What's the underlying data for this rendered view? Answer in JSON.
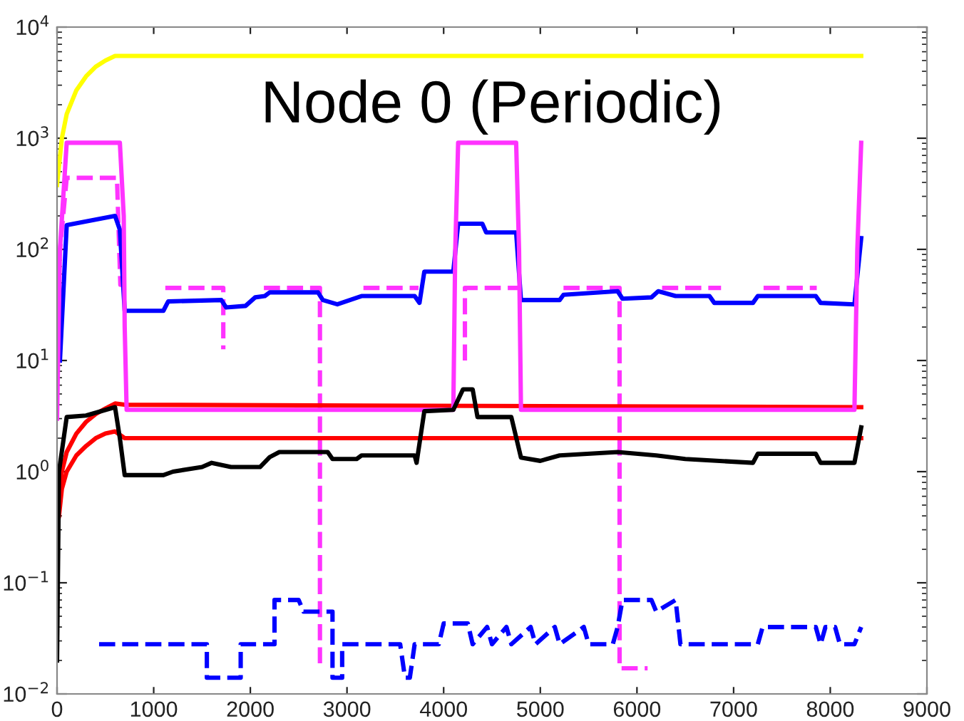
{
  "chart_data": {
    "type": "line",
    "title": "Node 0 (Periodic)",
    "log": "y",
    "grid": false,
    "line_style": "solid",
    "marker": "none",
    "xlim": [
      0,
      9000
    ],
    "xticks": [
      0,
      1000,
      2000,
      3000,
      4000,
      5000,
      6000,
      7000,
      8000,
      9000
    ],
    "ylim": [
      0.01,
      10000
    ],
    "yticks": [
      {
        "value": 0.01,
        "label": "10$^{−2}$"
      },
      {
        "value": 0.1,
        "label": "10$^{−1}$"
      },
      {
        "value": 1,
        "label": "10$^{0}$"
      },
      {
        "value": 10,
        "label": "10$^{1}$"
      },
      {
        "value": 100,
        "label": "10$^{2}$"
      },
      {
        "value": 1000,
        "label": "10$^{3}$"
      },
      {
        "value": 10000,
        "label": "10$^{4}$"
      }
    ],
    "series": [
      {
        "color": "#ffff00",
        "x": [
          0,
          50,
          100,
          200,
          300,
          400,
          500,
          600,
          8320
        ],
        "values": [
          380,
          1000,
          1650,
          2700,
          3600,
          4400,
          5000,
          5500,
          5500
        ]
      },
      {
        "color": "#ff33ff",
        "line_style": "dashed",
        "x": [
          0,
          50,
          100,
          600,
          620,
          655,
          700,
          null,
          1120,
          1700,
          1720,
          1720,
          null,
          2140,
          2700,
          2720,
          2720,
          null,
          3170,
          3740,
          null,
          4220,
          4220,
          4770,
          null,
          5240,
          5820,
          5820,
          6110,
          null,
          6260,
          6870,
          null,
          7310,
          7860
        ],
        "values": [
          50,
          150,
          440,
          440,
          440,
          48,
          48,
          null,
          45,
          45,
          45,
          12.6,
          null,
          45,
          45,
          45,
          0.017,
          null,
          45,
          45,
          null,
          10,
          45,
          45,
          null,
          45,
          45,
          0.017,
          0.017,
          null,
          45,
          45,
          null,
          45,
          45
        ]
      },
      {
        "color": "#0000ff",
        "x": [
          30,
          100,
          600,
          650,
          700,
          1100,
          1150,
          1700,
          1750,
          1950,
          2050,
          2150,
          2200,
          2700,
          2750,
          2900,
          3150,
          3700,
          3750,
          3800,
          4100,
          4150,
          4400,
          4440,
          4750,
          4800,
          5200,
          5240,
          5800,
          5850,
          6150,
          6220,
          6400,
          6750,
          6800,
          7200,
          7250,
          7850,
          7900,
          8250,
          8320
        ],
        "values": [
          10,
          165,
          200,
          150,
          28,
          28,
          34,
          35,
          30,
          31,
          37,
          38,
          41,
          41,
          35,
          32,
          38,
          38,
          33,
          63,
          63,
          170,
          170,
          142,
          142,
          35,
          35,
          39,
          42,
          36,
          37,
          42,
          38,
          38,
          33,
          33,
          38,
          38,
          33,
          32,
          126
        ]
      },
      {
        "color": "#ff0000",
        "x": [
          20,
          50,
          100,
          200,
          300,
          400,
          500,
          600,
          700,
          8320
        ],
        "values": [
          0.6,
          1.0,
          1.5,
          2.2,
          2.8,
          3.3,
          3.7,
          4.1,
          4.0,
          3.8
        ]
      },
      {
        "color": "#ff0000",
        "x": [
          20,
          50,
          100,
          200,
          300,
          400,
          500,
          600,
          700,
          8320
        ],
        "values": [
          0.4,
          0.7,
          1.0,
          1.4,
          1.7,
          2.0,
          2.2,
          2.3,
          2.0,
          2.0
        ]
      },
      {
        "color": "#ff33ff",
        "x": [
          0,
          30,
          100,
          650,
          690,
          700,
          720,
          4100,
          4120,
          4150,
          4750,
          4780,
          4800,
          8250,
          8280,
          8320
        ],
        "values": [
          3,
          100,
          910,
          910,
          200,
          20,
          3.6,
          3.6,
          100,
          910,
          910,
          100,
          3.6,
          3.6,
          100,
          910
        ]
      },
      {
        "color": "#000000",
        "x": [
          0,
          20,
          100,
          300,
          600,
          650,
          700,
          1100,
          1200,
          1500,
          1600,
          1800,
          2100,
          2200,
          2300,
          2800,
          2850,
          3100,
          3150,
          3700,
          3720,
          3800,
          4100,
          4200,
          4300,
          4350,
          4700,
          4800,
          5000,
          5200,
          5800,
          6200,
          6500,
          7200,
          7250,
          7850,
          7900,
          8250,
          8320
        ],
        "values": [
          0.02,
          1,
          3.1,
          3.2,
          3.8,
          2,
          0.93,
          0.93,
          1.0,
          1.1,
          1.2,
          1.1,
          1.1,
          1.35,
          1.5,
          1.5,
          1.3,
          1.3,
          1.4,
          1.4,
          1.2,
          3.5,
          3.6,
          5.5,
          5.5,
          3.1,
          3.1,
          1.34,
          1.25,
          1.4,
          1.5,
          1.4,
          1.3,
          1.2,
          1.45,
          1.45,
          1.2,
          1.2,
          2.5
        ]
      },
      {
        "color": "#0000ff",
        "line_style": "dashed",
        "x": [
          435,
          1550,
          1550,
          1900,
          1900,
          2250,
          2250,
          2500,
          2550,
          2850,
          2850,
          2950,
          2950,
          3550,
          3600,
          3650,
          3700,
          3950,
          4000,
          4250,
          4300,
          4450,
          4500,
          4650,
          4700,
          4900,
          4950,
          5150,
          5200,
          5450,
          5500,
          5750,
          5800,
          5850,
          6150,
          6200,
          6400,
          6450,
          7250,
          7300,
          7850,
          7900,
          7950,
          8050,
          8100,
          8250,
          8320
        ],
        "values": [
          0.028,
          0.028,
          0.014,
          0.014,
          0.028,
          0.028,
          0.07,
          0.07,
          0.055,
          0.055,
          0.014,
          0.014,
          0.028,
          0.028,
          0.014,
          0.014,
          0.028,
          0.028,
          0.043,
          0.043,
          0.028,
          0.04,
          0.028,
          0.04,
          0.028,
          0.04,
          0.028,
          0.04,
          0.028,
          0.04,
          0.028,
          0.028,
          0.04,
          0.07,
          0.07,
          0.055,
          0.07,
          0.028,
          0.028,
          0.04,
          0.04,
          0.028,
          0.04,
          0.04,
          0.028,
          0.028,
          0.04
        ]
      }
    ]
  }
}
